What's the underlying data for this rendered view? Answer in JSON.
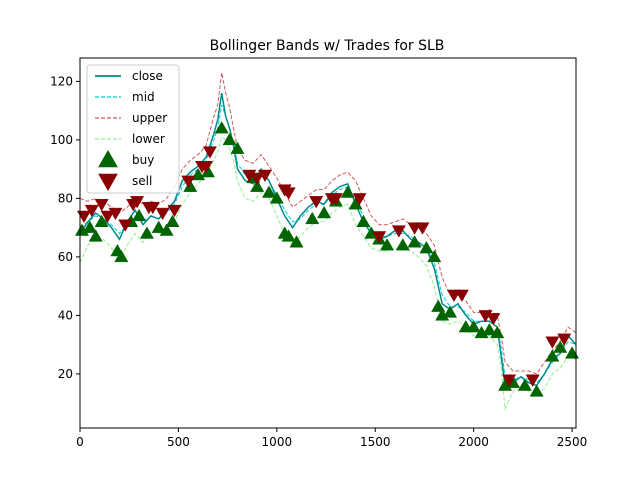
{
  "chart_data": {
    "type": "line",
    "title": "Bollinger Bands w/ Trades for SLB",
    "xlabel": "",
    "ylabel": "",
    "xlim": [
      0,
      2520
    ],
    "ylim": [
      1.5,
      128
    ],
    "x_ticks": [
      0,
      500,
      1000,
      1500,
      2000,
      2500
    ],
    "x_tick_labels": [
      "0",
      "500",
      "1000",
      "1500",
      "2000",
      "2500"
    ],
    "y_ticks": [
      20,
      40,
      60,
      80,
      100,
      120
    ],
    "y_tick_labels": [
      "20",
      "40",
      "60",
      "80",
      "100",
      "120"
    ],
    "grid": false,
    "legend_position": "top-left",
    "legend": [
      {
        "key": "close",
        "label": "close",
        "kind": "line",
        "color": "#008b8b",
        "dash": "solid"
      },
      {
        "key": "mid",
        "label": "mid",
        "kind": "line",
        "color": "#00ced1",
        "dash": "dashed"
      },
      {
        "key": "upper",
        "label": "upper",
        "kind": "line",
        "color": "#cd5c5c",
        "dash": "dashed"
      },
      {
        "key": "lower",
        "label": "lower",
        "kind": "line",
        "color": "#90ee90",
        "dash": "dashed"
      },
      {
        "key": "buy",
        "label": "buy",
        "kind": "marker",
        "marker": "triangle-up",
        "color": "#006400"
      },
      {
        "key": "sell",
        "label": "sell",
        "kind": "marker",
        "marker": "triangle-down",
        "color": "#8b0000"
      }
    ],
    "series": [
      {
        "name": "close",
        "color": "#008b8b",
        "style": "solid",
        "x": [
          0,
          40,
          80,
          120,
          160,
          200,
          240,
          280,
          320,
          360,
          400,
          440,
          480,
          520,
          560,
          600,
          640,
          680,
          700,
          720,
          740,
          760,
          780,
          800,
          840,
          880,
          920,
          960,
          1000,
          1040,
          1080,
          1120,
          1160,
          1200,
          1240,
          1280,
          1320,
          1360,
          1400,
          1440,
          1480,
          1520,
          1560,
          1600,
          1640,
          1680,
          1720,
          1760,
          1800,
          1840,
          1880,
          1920,
          1960,
          2000,
          2040,
          2080,
          2120,
          2140,
          2160,
          2200,
          2240,
          2280,
          2320,
          2360,
          2400,
          2440,
          2480,
          2520
        ],
        "y": [
          68,
          72,
          75,
          73,
          70,
          66,
          72,
          76,
          71,
          74,
          73,
          76,
          79,
          86,
          89,
          91,
          94,
          102,
          107,
          116,
          108,
          104,
          98,
          90,
          86,
          85,
          90,
          86,
          80,
          74,
          70,
          74,
          77,
          79,
          78,
          82,
          84,
          85,
          78,
          72,
          68,
          66,
          67,
          69,
          69,
          66,
          65,
          63,
          56,
          44,
          42,
          44,
          40,
          37,
          38,
          38,
          36,
          26,
          16,
          17,
          19,
          17,
          16,
          20,
          25,
          27,
          33,
          30
        ]
      },
      {
        "name": "mid",
        "color": "#00ced1",
        "style": "dashed",
        "x": [
          0,
          40,
          80,
          120,
          160,
          200,
          240,
          280,
          320,
          360,
          400,
          440,
          480,
          520,
          560,
          600,
          640,
          680,
          700,
          720,
          740,
          760,
          780,
          800,
          840,
          880,
          920,
          960,
          1000,
          1040,
          1080,
          1120,
          1160,
          1200,
          1240,
          1280,
          1320,
          1360,
          1400,
          1440,
          1480,
          1520,
          1560,
          1600,
          1640,
          1680,
          1720,
          1760,
          1800,
          1840,
          1880,
          1920,
          1960,
          2000,
          2040,
          2080,
          2120,
          2140,
          2160,
          2200,
          2240,
          2280,
          2320,
          2360,
          2400,
          2440,
          2480,
          2520
        ],
        "y": [
          70,
          72,
          74,
          73,
          71,
          68,
          71,
          74,
          72,
          74,
          73,
          75,
          78,
          84,
          88,
          90,
          93,
          100,
          104,
          112,
          108,
          104,
          99,
          92,
          88,
          86,
          89,
          86,
          81,
          76,
          72,
          73,
          76,
          78,
          78,
          81,
          83,
          84,
          79,
          74,
          69,
          67,
          67,
          68,
          68,
          67,
          65,
          63,
          58,
          47,
          43,
          43,
          41,
          38,
          38,
          38,
          36,
          29,
          19,
          18,
          19,
          18,
          17,
          20,
          24,
          27,
          31,
          30
        ]
      },
      {
        "name": "upper",
        "color": "#cd5c5c",
        "style": "dashed",
        "x": [
          0,
          40,
          80,
          120,
          160,
          200,
          240,
          280,
          320,
          360,
          400,
          440,
          480,
          520,
          560,
          600,
          640,
          680,
          700,
          720,
          740,
          760,
          780,
          800,
          840,
          880,
          920,
          960,
          1000,
          1040,
          1080,
          1120,
          1160,
          1200,
          1240,
          1280,
          1320,
          1360,
          1400,
          1440,
          1480,
          1520,
          1560,
          1600,
          1640,
          1680,
          1720,
          1760,
          1800,
          1840,
          1880,
          1920,
          1960,
          2000,
          2040,
          2080,
          2120,
          2140,
          2160,
          2200,
          2240,
          2280,
          2320,
          2360,
          2400,
          2440,
          2480,
          2520
        ],
        "y": [
          80,
          79,
          80,
          79,
          77,
          75,
          77,
          80,
          78,
          79,
          78,
          80,
          84,
          90,
          93,
          95,
          98,
          108,
          112,
          123,
          116,
          111,
          104,
          97,
          93,
          92,
          95,
          91,
          87,
          82,
          77,
          79,
          81,
          83,
          83,
          86,
          88,
          89,
          86,
          80,
          74,
          71,
          71,
          72,
          73,
          71,
          70,
          68,
          64,
          53,
          47,
          47,
          45,
          41,
          41,
          42,
          40,
          33,
          24,
          21,
          21,
          21,
          20,
          24,
          28,
          31,
          36,
          34
        ]
      },
      {
        "name": "lower",
        "color": "#90ee90",
        "style": "dashed",
        "x": [
          0,
          40,
          80,
          120,
          160,
          200,
          240,
          280,
          320,
          360,
          400,
          440,
          480,
          520,
          560,
          600,
          640,
          680,
          700,
          720,
          740,
          760,
          780,
          800,
          840,
          880,
          920,
          960,
          1000,
          1040,
          1080,
          1120,
          1160,
          1200,
          1240,
          1280,
          1320,
          1360,
          1400,
          1440,
          1480,
          1520,
          1560,
          1600,
          1640,
          1680,
          1720,
          1760,
          1800,
          1840,
          1880,
          1920,
          1960,
          2000,
          2040,
          2080,
          2120,
          2140,
          2160,
          2200,
          2240,
          2280,
          2320,
          2360,
          2400,
          2440,
          2480,
          2520
        ],
        "y": [
          58,
          64,
          66,
          66,
          63,
          58,
          64,
          68,
          65,
          69,
          68,
          70,
          72,
          78,
          82,
          85,
          88,
          93,
          96,
          101,
          100,
          97,
          93,
          86,
          80,
          79,
          82,
          80,
          74,
          68,
          64,
          67,
          70,
          72,
          72,
          75,
          77,
          78,
          71,
          67,
          63,
          62,
          62,
          63,
          63,
          62,
          60,
          57,
          50,
          38,
          37,
          38,
          36,
          33,
          34,
          33,
          30,
          22,
          8,
          14,
          16,
          14,
          13,
          15,
          20,
          22,
          26,
          25
        ]
      },
      {
        "name": "buy",
        "color": "#006400",
        "marker": "triangle-up",
        "x": [
          10,
          50,
          80,
          110,
          190,
          210,
          260,
          300,
          340,
          400,
          440,
          470,
          560,
          600,
          650,
          720,
          760,
          800,
          880,
          900,
          960,
          1000,
          1040,
          1060,
          1100,
          1180,
          1240,
          1300,
          1360,
          1400,
          1440,
          1480,
          1520,
          1560,
          1640,
          1700,
          1760,
          1800,
          1820,
          1840,
          1880,
          1960,
          2000,
          2040,
          2080,
          2120,
          2160,
          2200,
          2260,
          2320,
          2400,
          2440,
          2500
        ],
        "y": [
          69,
          70,
          67,
          72,
          62,
          60,
          72,
          74,
          68,
          70,
          69,
          72,
          84,
          88,
          89,
          104,
          100,
          97,
          87,
          84,
          82,
          80,
          68,
          67,
          65,
          73,
          75,
          79,
          82,
          78,
          72,
          68,
          66,
          64,
          64,
          65,
          63,
          60,
          43,
          40,
          41,
          36,
          36,
          34,
          35,
          34,
          16,
          17,
          16,
          14,
          26,
          29,
          27
        ]
      },
      {
        "name": "sell",
        "color": "#8b0000",
        "marker": "triangle-down",
        "x": [
          20,
          60,
          110,
          140,
          180,
          230,
          270,
          290,
          350,
          370,
          420,
          480,
          550,
          620,
          640,
          660,
          860,
          900,
          940,
          1040,
          1060,
          1200,
          1280,
          1300,
          1420,
          1520,
          1620,
          1700,
          1740,
          1900,
          1940,
          2060,
          2100,
          2180,
          2300,
          2400,
          2460
        ],
        "y": [
          74,
          76,
          78,
          74,
          75,
          71,
          78,
          79,
          77,
          77,
          75,
          76,
          86,
          91,
          91,
          96,
          88,
          87,
          88,
          83,
          82,
          79,
          80,
          80,
          80,
          67,
          69,
          70,
          70,
          47,
          47,
          40,
          39,
          18,
          18,
          31,
          32
        ]
      }
    ]
  }
}
